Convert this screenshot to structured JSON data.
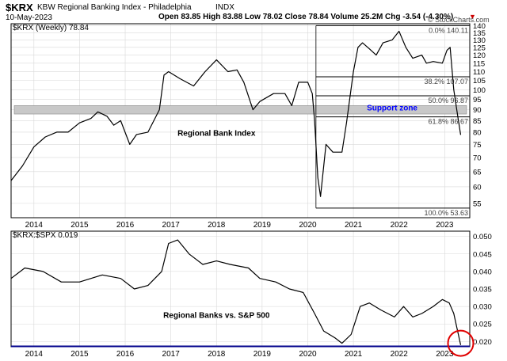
{
  "header": {
    "symbol": "$KRX",
    "name": "KBW Regional Banking Index - Philadelphia",
    "exchange": "INDX",
    "date": "10-May-2023",
    "ohlc_text": "Open 83.85  High 83.88  Low 78.02  Close 78.84  Volume 25.2M  Chg -3.54 (-4.30%)",
    "change_arrow": "▼",
    "watermark": "© StockCharts.com"
  },
  "colors": {
    "price_line": "#000000",
    "fib_line": "#000000",
    "support_band": "#c8c8c8",
    "support_text": "#0000ff",
    "ratio_baseline": "#00008b",
    "circle": "#e00000",
    "grid": "#d9d9d9"
  },
  "chart_data": [
    {
      "type": "line",
      "legend": "$KRX (Weekly) 78.84",
      "annotation": "Regional Bank Index",
      "support_label": "Support zone",
      "support_zone": [
        88,
        92
      ],
      "fib_levels": [
        {
          "label": "0.0% 140.11",
          "value": 140.11
        },
        {
          "label": "38.2% 107.07",
          "value": 107.07
        },
        {
          "label": "50.0% 96.87",
          "value": 96.87
        },
        {
          "label": "61.8% 86.67",
          "value": 86.67
        },
        {
          "label": "100.0% 53.63",
          "value": 53.63
        }
      ],
      "fib_start_year": 2020.18,
      "y_ticks": [
        55,
        60,
        65,
        70,
        75,
        80,
        85,
        90,
        95,
        100,
        105,
        110,
        115,
        120,
        125,
        130,
        135,
        140
      ],
      "ylim": [
        51,
        141.5
      ],
      "log_scale": true,
      "xlim": [
        2013.5,
        2023.55
      ],
      "x_ticks": [
        "2014",
        "2015",
        "2016",
        "2017",
        "2018",
        "2019",
        "2020",
        "2021",
        "2022",
        "2023"
      ],
      "x": [
        2013.5,
        2013.75,
        2014.0,
        2014.25,
        2014.5,
        2014.75,
        2015.0,
        2015.25,
        2015.4,
        2015.6,
        2015.75,
        2015.9,
        2016.1,
        2016.25,
        2016.5,
        2016.75,
        2016.85,
        2016.95,
        2017.2,
        2017.5,
        2017.75,
        2018.0,
        2018.25,
        2018.45,
        2018.6,
        2018.8,
        2018.95,
        2019.25,
        2019.5,
        2019.65,
        2019.8,
        2020.0,
        2020.1,
        2020.15,
        2020.22,
        2020.28,
        2020.4,
        2020.55,
        2020.75,
        2020.85,
        2021.0,
        2021.1,
        2021.2,
        2021.35,
        2021.5,
        2021.65,
        2021.85,
        2022.0,
        2022.15,
        2022.3,
        2022.5,
        2022.6,
        2022.75,
        2022.95,
        2023.05,
        2023.12,
        2023.2,
        2023.28,
        2023.35
      ],
      "values": [
        62,
        67,
        74,
        78,
        80,
        80,
        84,
        86,
        89,
        87,
        83,
        85,
        75,
        79,
        80,
        90,
        108,
        110,
        106,
        102,
        110,
        117,
        110,
        111,
        104,
        90,
        94,
        98,
        98,
        92,
        104,
        104,
        98,
        85,
        63,
        57,
        75,
        72,
        72,
        84,
        110,
        125,
        128,
        124,
        120,
        128,
        130,
        136,
        125,
        118,
        120,
        115,
        116,
        115,
        123,
        125,
        100,
        88,
        78.84
      ]
    },
    {
      "type": "line",
      "legend": "$KRX:$SPX 0.019",
      "annotation": "Regional Banks vs. S&P 500",
      "y_ticks": [
        0.02,
        0.025,
        0.03,
        0.035,
        0.04,
        0.045,
        0.05
      ],
      "ylim": [
        0.0185,
        0.0515
      ],
      "baseline": 0.0186,
      "xlim": [
        2013.5,
        2023.55
      ],
      "x_ticks": [
        "2014",
        "2015",
        "2016",
        "2017",
        "2018",
        "2019",
        "2020",
        "2021",
        "2022",
        "2023"
      ],
      "x": [
        2013.5,
        2013.8,
        2014.2,
        2014.6,
        2015.0,
        2015.5,
        2015.9,
        2016.2,
        2016.5,
        2016.8,
        2016.95,
        2017.15,
        2017.4,
        2017.7,
        2018.0,
        2018.3,
        2018.7,
        2018.95,
        2019.3,
        2019.6,
        2019.9,
        2020.15,
        2020.35,
        2020.6,
        2020.75,
        2020.95,
        2021.15,
        2021.35,
        2021.6,
        2021.9,
        2022.1,
        2022.3,
        2022.5,
        2022.75,
        2022.95,
        2023.1,
        2023.2,
        2023.3,
        2023.35
      ],
      "values": [
        0.038,
        0.041,
        0.04,
        0.037,
        0.037,
        0.039,
        0.038,
        0.035,
        0.036,
        0.04,
        0.048,
        0.049,
        0.045,
        0.042,
        0.043,
        0.042,
        0.041,
        0.038,
        0.037,
        0.035,
        0.034,
        0.028,
        0.023,
        0.021,
        0.0195,
        0.022,
        0.03,
        0.031,
        0.029,
        0.027,
        0.03,
        0.027,
        0.028,
        0.03,
        0.032,
        0.031,
        0.028,
        0.022,
        0.019
      ]
    }
  ]
}
